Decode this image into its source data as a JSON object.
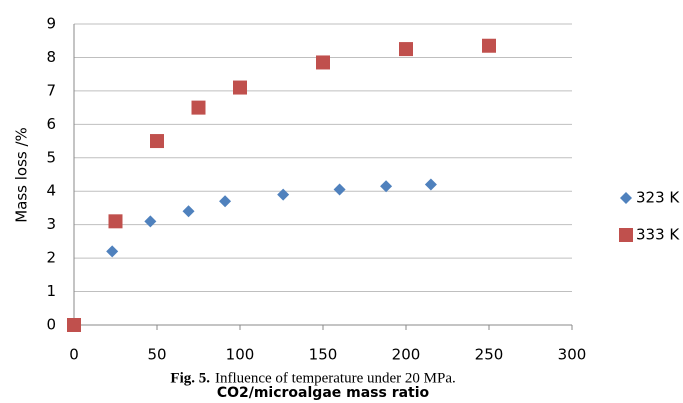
{
  "chart_data": {
    "type": "scatter",
    "y_label": "Mass loss /%",
    "x_label": "CO2/microalgae mass ratio",
    "caption_label": "Fig. 5.",
    "caption": "Influence of temperature under 20 MPa.",
    "xlim": [
      0,
      300
    ],
    "xticks": [
      0,
      50,
      100,
      150,
      200,
      250,
      300
    ],
    "ylim": [
      0,
      9
    ],
    "yticks": [
      0,
      1,
      2,
      3,
      4,
      5,
      6,
      7,
      8,
      9
    ],
    "grid": true,
    "legend": "right",
    "series": [
      {
        "name": "323 K",
        "color": "#4f81bd",
        "marker": "diamond",
        "x": [
          23,
          46,
          69,
          91,
          126,
          160,
          188,
          215
        ],
        "values": [
          2.2,
          3.1,
          3.4,
          3.7,
          3.9,
          4.05,
          4.15,
          4.2
        ]
      },
      {
        "name": "333 K",
        "color": "#c0504d",
        "marker": "square",
        "x": [
          0,
          25,
          50,
          75,
          100,
          150,
          200,
          250
        ],
        "values": [
          0,
          3.1,
          5.5,
          6.5,
          7.1,
          7.85,
          8.25,
          8.35
        ]
      }
    ]
  }
}
